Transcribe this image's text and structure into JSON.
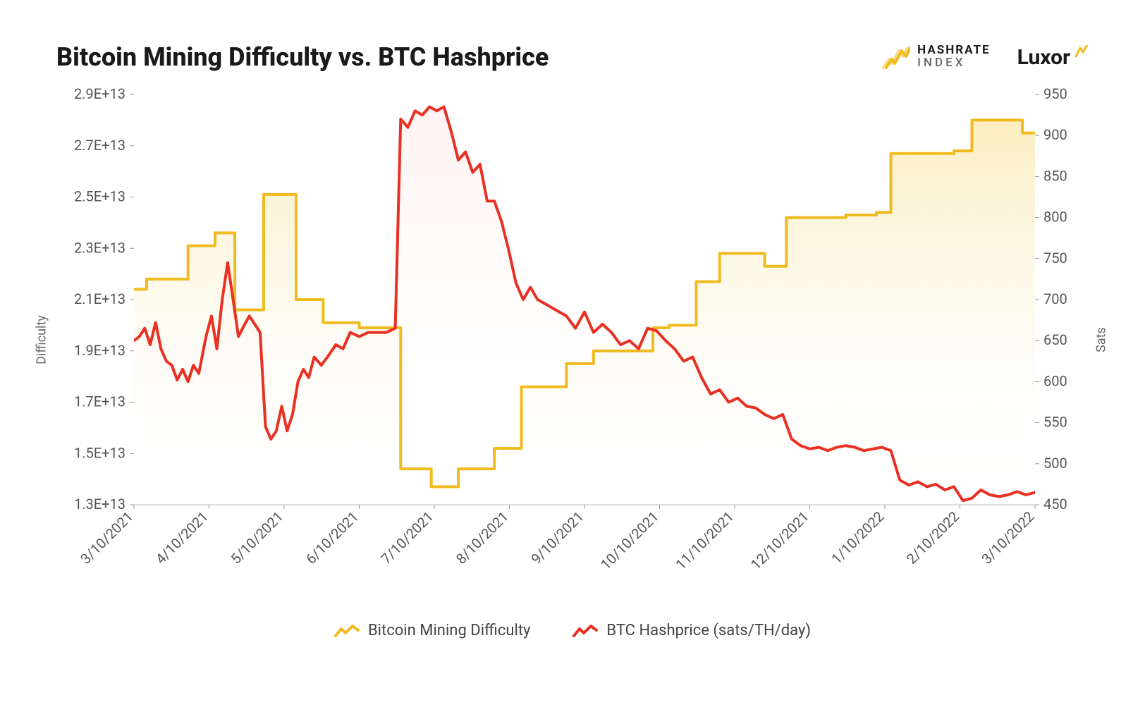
{
  "title": "Bitcoin Mining Difficulty vs. BTC Hashprice",
  "brand_hashrate_line1": "HASHRATE",
  "brand_hashrate_line2": "INDEX",
  "brand_luxor": "Luxor",
  "chart": {
    "type": "dual-axis-line-area",
    "background_color": "#ffffff",
    "x_labels": [
      "3/10/2021",
      "4/10/2021",
      "5/10/2021",
      "6/10/2021",
      "7/10/2021",
      "8/10/2021",
      "9/10/2021",
      "10/10/2021",
      "11/10/2021",
      "12/10/2021",
      "1/10/2022",
      "2/10/2022",
      "3/10/2022"
    ],
    "x_label_fontsize": 20,
    "x_label_color": "#555555",
    "x_label_rotation_deg": -45,
    "left_axis": {
      "label": "Difficulty",
      "label_fontsize": 18,
      "label_color": "#666666",
      "ticks": [
        "1.3E+13",
        "1.5E+13",
        "1.7E+13",
        "1.9E+13",
        "2.1E+13",
        "2.3E+13",
        "2.5E+13",
        "2.7E+13",
        "2.9E+13"
      ],
      "tick_values": [
        1.3,
        1.5,
        1.7,
        1.9,
        2.1,
        2.3,
        2.5,
        2.7,
        2.9
      ],
      "tick_fontsize": 20,
      "tick_color": "#555555",
      "min": 1.3,
      "max": 2.9
    },
    "right_axis": {
      "label": "Sats",
      "label_fontsize": 18,
      "label_color": "#666666",
      "ticks": [
        "450",
        "500",
        "550",
        "600",
        "650",
        "700",
        "750",
        "800",
        "850",
        "900",
        "950"
      ],
      "tick_values": [
        450,
        500,
        550,
        600,
        650,
        700,
        750,
        800,
        850,
        900,
        950
      ],
      "tick_fontsize": 20,
      "tick_color": "#555555",
      "min": 450,
      "max": 950
    },
    "grid": {
      "show": false
    },
    "series": {
      "difficulty": {
        "color": "#efbb1f",
        "line_width": 4,
        "fill_color_top": "#f9e6a7",
        "fill_color_bottom": "#ffffff",
        "fill_opacity": 0.7,
        "data": [
          [
            0.0,
            2.14
          ],
          [
            0.07,
            2.14
          ],
          [
            0.07,
            2.18
          ],
          [
            0.18,
            2.18
          ],
          [
            0.18,
            2.18
          ],
          [
            0.3,
            2.18
          ],
          [
            0.3,
            2.31
          ],
          [
            0.45,
            2.31
          ],
          [
            0.45,
            2.36
          ],
          [
            0.56,
            2.36
          ],
          [
            0.56,
            2.06
          ],
          [
            0.72,
            2.06
          ],
          [
            0.72,
            2.51
          ],
          [
            0.9,
            2.51
          ],
          [
            0.9,
            2.1
          ],
          [
            1.05,
            2.1
          ],
          [
            1.05,
            2.01
          ],
          [
            1.25,
            2.01
          ],
          [
            1.25,
            1.99
          ],
          [
            1.48,
            1.99
          ],
          [
            1.48,
            1.44
          ],
          [
            1.65,
            1.44
          ],
          [
            1.65,
            1.37
          ],
          [
            1.8,
            1.37
          ],
          [
            1.8,
            1.44
          ],
          [
            2.0,
            1.44
          ],
          [
            2.0,
            1.52
          ],
          [
            2.15,
            1.52
          ],
          [
            2.15,
            1.76
          ],
          [
            2.4,
            1.76
          ],
          [
            2.4,
            1.85
          ],
          [
            2.55,
            1.85
          ],
          [
            2.55,
            1.9
          ],
          [
            2.88,
            1.9
          ],
          [
            2.88,
            1.99
          ],
          [
            2.97,
            1.99
          ],
          [
            2.97,
            2.0
          ],
          [
            3.12,
            2.0
          ],
          [
            3.12,
            2.17
          ],
          [
            3.25,
            2.17
          ],
          [
            3.25,
            2.28
          ],
          [
            3.5,
            2.28
          ],
          [
            3.5,
            2.23
          ],
          [
            3.62,
            2.23
          ],
          [
            3.62,
            2.42
          ],
          [
            3.95,
            2.42
          ],
          [
            3.95,
            2.43
          ],
          [
            4.12,
            2.43
          ],
          [
            4.12,
            2.44
          ],
          [
            4.2,
            2.44
          ],
          [
            4.2,
            2.67
          ],
          [
            4.55,
            2.67
          ],
          [
            4.55,
            2.68
          ],
          [
            4.65,
            2.68
          ],
          [
            4.65,
            2.8
          ],
          [
            4.93,
            2.8
          ],
          [
            4.93,
            2.75
          ],
          [
            5.0,
            2.75
          ]
        ]
      },
      "hashprice": {
        "color": "#e83023",
        "line_width": 4,
        "fill_color_top": "#fde6e3",
        "fill_color_bottom": "#ffffff",
        "fill_opacity": 0.45,
        "data": [
          [
            0.0,
            650
          ],
          [
            0.03,
            655
          ],
          [
            0.06,
            665
          ],
          [
            0.09,
            645
          ],
          [
            0.12,
            672
          ],
          [
            0.15,
            640
          ],
          [
            0.18,
            625
          ],
          [
            0.21,
            620
          ],
          [
            0.24,
            602
          ],
          [
            0.27,
            615
          ],
          [
            0.3,
            600
          ],
          [
            0.33,
            620
          ],
          [
            0.36,
            610
          ],
          [
            0.4,
            655
          ],
          [
            0.43,
            680
          ],
          [
            0.46,
            640
          ],
          [
            0.49,
            700
          ],
          [
            0.52,
            745
          ],
          [
            0.55,
            700
          ],
          [
            0.58,
            655
          ],
          [
            0.61,
            668
          ],
          [
            0.64,
            680
          ],
          [
            0.67,
            670
          ],
          [
            0.7,
            660
          ],
          [
            0.73,
            545
          ],
          [
            0.76,
            530
          ],
          [
            0.79,
            540
          ],
          [
            0.82,
            570
          ],
          [
            0.85,
            540
          ],
          [
            0.88,
            560
          ],
          [
            0.91,
            600
          ],
          [
            0.94,
            615
          ],
          [
            0.97,
            605
          ],
          [
            1.0,
            630
          ],
          [
            1.04,
            620
          ],
          [
            1.08,
            632
          ],
          [
            1.12,
            645
          ],
          [
            1.16,
            640
          ],
          [
            1.2,
            660
          ],
          [
            1.25,
            655
          ],
          [
            1.3,
            660
          ],
          [
            1.35,
            660
          ],
          [
            1.4,
            660
          ],
          [
            1.45,
            665
          ],
          [
            1.48,
            920
          ],
          [
            1.52,
            910
          ],
          [
            1.56,
            930
          ],
          [
            1.6,
            925
          ],
          [
            1.64,
            935
          ],
          [
            1.68,
            930
          ],
          [
            1.72,
            935
          ],
          [
            1.76,
            905
          ],
          [
            1.8,
            870
          ],
          [
            1.84,
            880
          ],
          [
            1.88,
            855
          ],
          [
            1.92,
            865
          ],
          [
            1.96,
            820
          ],
          [
            2.0,
            820
          ],
          [
            2.04,
            795
          ],
          [
            2.08,
            760
          ],
          [
            2.12,
            720
          ],
          [
            2.16,
            700
          ],
          [
            2.2,
            715
          ],
          [
            2.24,
            700
          ],
          [
            2.28,
            695
          ],
          [
            2.32,
            690
          ],
          [
            2.36,
            685
          ],
          [
            2.4,
            680
          ],
          [
            2.45,
            665
          ],
          [
            2.5,
            685
          ],
          [
            2.55,
            660
          ],
          [
            2.6,
            670
          ],
          [
            2.65,
            660
          ],
          [
            2.7,
            645
          ],
          [
            2.75,
            650
          ],
          [
            2.8,
            640
          ],
          [
            2.85,
            665
          ],
          [
            2.9,
            662
          ],
          [
            2.95,
            650
          ],
          [
            3.0,
            640
          ],
          [
            3.05,
            625
          ],
          [
            3.1,
            630
          ],
          [
            3.15,
            605
          ],
          [
            3.2,
            585
          ],
          [
            3.25,
            590
          ],
          [
            3.3,
            575
          ],
          [
            3.35,
            580
          ],
          [
            3.4,
            570
          ],
          [
            3.45,
            568
          ],
          [
            3.5,
            560
          ],
          [
            3.55,
            555
          ],
          [
            3.6,
            560
          ],
          [
            3.65,
            530
          ],
          [
            3.7,
            522
          ],
          [
            3.75,
            518
          ],
          [
            3.8,
            520
          ],
          [
            3.85,
            516
          ],
          [
            3.9,
            520
          ],
          [
            3.95,
            522
          ],
          [
            4.0,
            520
          ],
          [
            4.05,
            516
          ],
          [
            4.1,
            518
          ],
          [
            4.15,
            520
          ],
          [
            4.2,
            516
          ],
          [
            4.25,
            480
          ],
          [
            4.3,
            474
          ],
          [
            4.35,
            478
          ],
          [
            4.4,
            472
          ],
          [
            4.45,
            475
          ],
          [
            4.5,
            468
          ],
          [
            4.55,
            472
          ],
          [
            4.6,
            455
          ],
          [
            4.65,
            458
          ],
          [
            4.7,
            468
          ],
          [
            4.75,
            462
          ],
          [
            4.8,
            460
          ],
          [
            4.85,
            462
          ],
          [
            4.9,
            466
          ],
          [
            4.95,
            462
          ],
          [
            5.0,
            465
          ]
        ]
      }
    }
  },
  "legend": {
    "difficulty": "Bitcoin Mining Difficulty",
    "hashprice": "BTC Hashprice (sats/TH/day)",
    "fontsize": 22
  },
  "colors": {
    "gold": "#efbb1f",
    "red": "#e83023",
    "text_dark": "#1a1a1a",
    "text_muted": "#666666"
  }
}
